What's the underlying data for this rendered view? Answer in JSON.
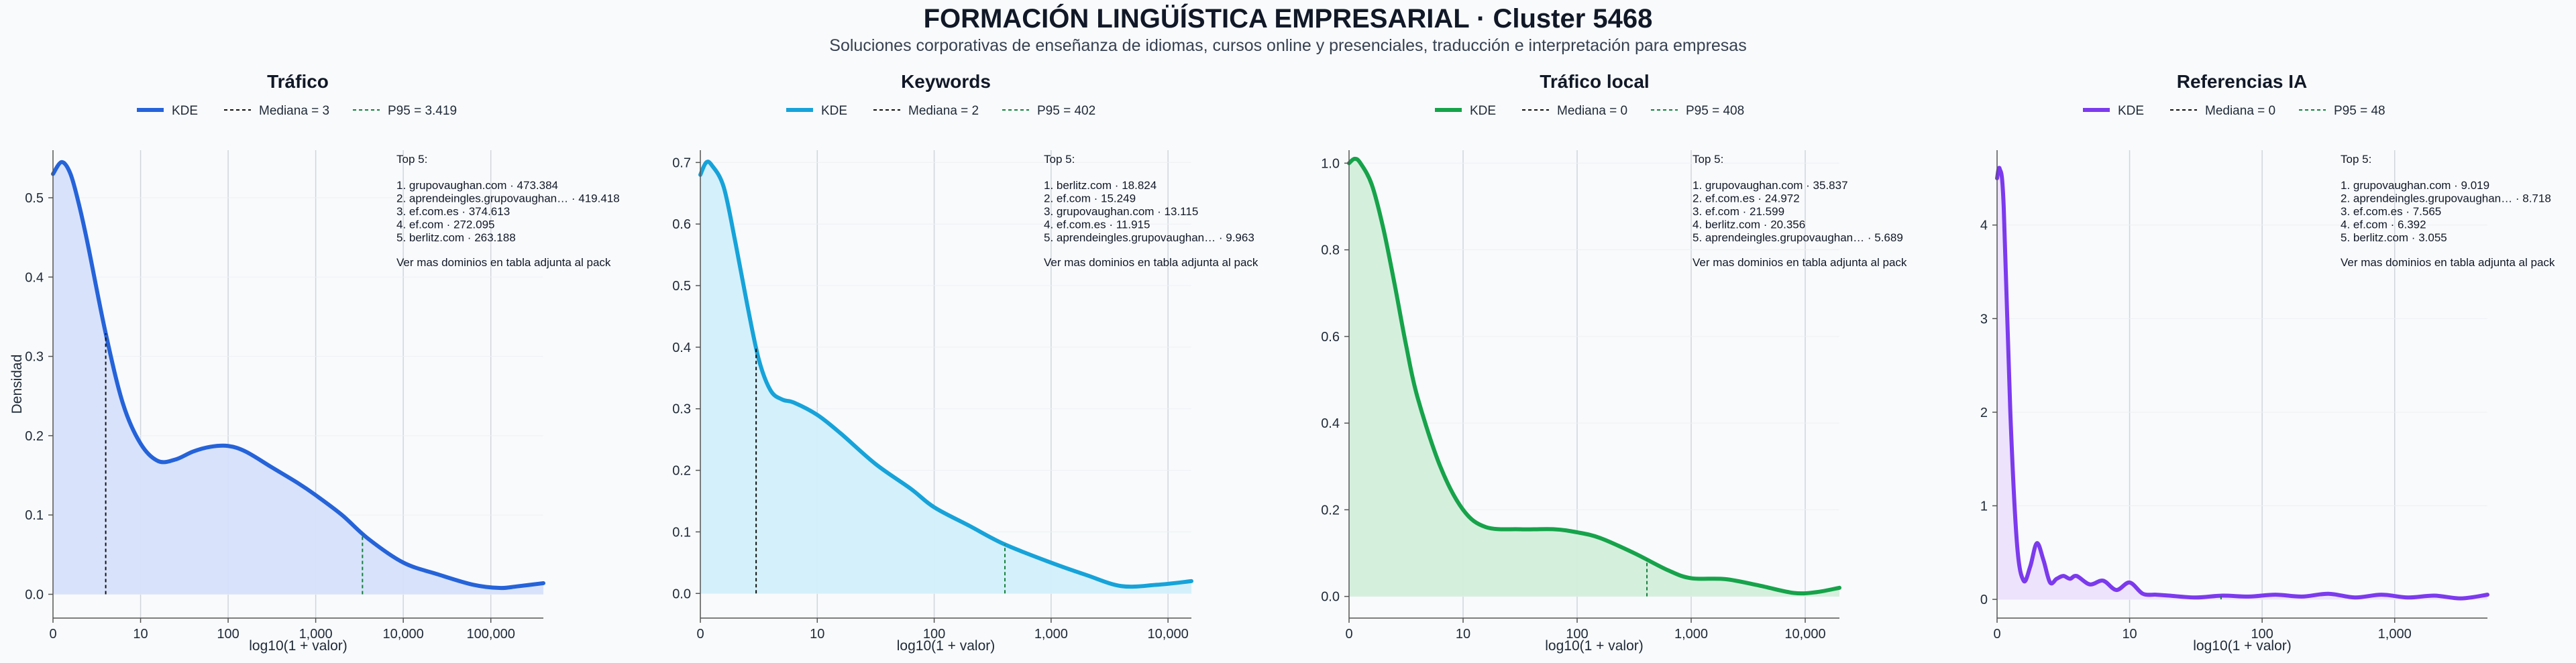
{
  "title": "FORMACIÓN LINGÜÍSTICA EMPRESARIAL · Cluster 5468",
  "subtitle": "Soluciones corporativas de enseñanza de idiomas, cursos online y presenciales, traducción e interpretación para empresas",
  "colors": {
    "median_line": "#111111",
    "p95_line": "#15803d",
    "grid": "#d1d5db"
  },
  "chart_data": [
    {
      "type": "area",
      "title": "Tráfico",
      "xlabel": "log10(1 + valor)",
      "ylabel": "Densidad",
      "color": "#2563d9",
      "fill": "#d6e0fb",
      "xlim": [
        0,
        5.6
      ],
      "ylim": [
        -0.03,
        0.56
      ],
      "xticks": [
        0,
        1,
        2,
        3,
        4,
        5
      ],
      "xtick_labels": [
        "0",
        "10",
        "100",
        "1,000",
        "10,000",
        "100,000"
      ],
      "yticks": [
        0,
        0.1,
        0.2,
        0.3,
        0.4,
        0.5
      ],
      "ytick_labels": [
        "0.0",
        "0.1",
        "0.2",
        "0.3",
        "0.4",
        "0.5"
      ],
      "legend": {
        "kde": "KDE",
        "median": "Mediana = 3",
        "p95": "P95 = 3.419"
      },
      "median_x": 0.602,
      "p95_x": 3.534,
      "x": [
        0,
        0.1,
        0.2,
        0.3,
        0.4,
        0.6,
        0.8,
        1.0,
        1.2,
        1.4,
        1.6,
        1.8,
        2.0,
        2.2,
        2.5,
        2.8,
        3.0,
        3.3,
        3.6,
        4.0,
        4.4,
        4.8,
        5.1,
        5.3,
        5.6
      ],
      "y": [
        0.53,
        0.545,
        0.53,
        0.49,
        0.44,
        0.33,
        0.24,
        0.19,
        0.168,
        0.17,
        0.18,
        0.186,
        0.187,
        0.18,
        0.16,
        0.14,
        0.125,
        0.1,
        0.07,
        0.04,
        0.025,
        0.012,
        0.008,
        0.01,
        0.014
      ],
      "top5": {
        "heading": "Top 5:",
        "items": [
          "1. grupovaughan.com · 473.384",
          "2. aprendeingles.grupovaughan… · 419.418",
          "3. ef.com.es · 374.613",
          "4. ef.com · 272.095",
          "5. berlitz.com · 263.188"
        ],
        "note": "Ver mas dominios en tabla adjunta al pack"
      }
    },
    {
      "type": "area",
      "title": "Keywords",
      "xlabel": "log10(1 + valor)",
      "ylabel": "",
      "color": "#16a3d9",
      "fill": "#d2effb",
      "xlim": [
        0,
        4.2
      ],
      "ylim": [
        -0.04,
        0.72
      ],
      "xticks": [
        0,
        1,
        2,
        3,
        4
      ],
      "xtick_labels": [
        "0",
        "10",
        "100",
        "1,000",
        "10,000"
      ],
      "yticks": [
        0,
        0.1,
        0.2,
        0.3,
        0.4,
        0.5,
        0.6,
        0.7
      ],
      "ytick_labels": [
        "0.0",
        "0.1",
        "0.2",
        "0.3",
        "0.4",
        "0.5",
        "0.6",
        "0.7"
      ],
      "legend": {
        "kde": "KDE",
        "median": "Mediana = 2",
        "p95": "P95 = 402"
      },
      "median_x": 0.477,
      "p95_x": 2.605,
      "x": [
        0,
        0.05,
        0.1,
        0.2,
        0.3,
        0.4,
        0.5,
        0.6,
        0.7,
        0.8,
        1.0,
        1.2,
        1.5,
        1.8,
        2.0,
        2.3,
        2.6,
        3.0,
        3.3,
        3.6,
        3.9,
        4.2
      ],
      "y": [
        0.68,
        0.7,
        0.695,
        0.66,
        0.57,
        0.47,
        0.38,
        0.33,
        0.315,
        0.31,
        0.29,
        0.26,
        0.21,
        0.17,
        0.14,
        0.11,
        0.08,
        0.05,
        0.03,
        0.012,
        0.014,
        0.02
      ],
      "top5": {
        "heading": "Top 5:",
        "items": [
          "1. berlitz.com · 18.824",
          "2. ef.com · 15.249",
          "3. grupovaughan.com · 13.115",
          "4. ef.com.es · 11.915",
          "5. aprendeingles.grupovaughan… · 9.963"
        ],
        "note": "Ver mas dominios en tabla adjunta al pack"
      }
    },
    {
      "type": "area",
      "title": "Tráfico local",
      "xlabel": "log10(1 + valor)",
      "ylabel": "",
      "color": "#16a34a",
      "fill": "#d3eedb",
      "xlim": [
        0,
        4.3
      ],
      "ylim": [
        -0.05,
        1.03
      ],
      "xticks": [
        0,
        1,
        2,
        3,
        4
      ],
      "xtick_labels": [
        "0",
        "10",
        "100",
        "1,000",
        "10,000"
      ],
      "yticks": [
        0,
        0.2,
        0.4,
        0.6,
        0.8,
        1.0
      ],
      "ytick_labels": [
        "0.0",
        "0.2",
        "0.4",
        "0.6",
        "0.8",
        "1.0"
      ],
      "legend": {
        "kde": "KDE",
        "median": "Mediana = 0",
        "p95": "P95 = 408"
      },
      "median_x": 0,
      "p95_x": 2.612,
      "x": [
        0,
        0.05,
        0.1,
        0.2,
        0.3,
        0.4,
        0.5,
        0.6,
        0.8,
        1.0,
        1.2,
        1.5,
        1.8,
        2.0,
        2.2,
        2.5,
        2.8,
        3.0,
        3.3,
        3.6,
        3.9,
        4.1,
        4.3
      ],
      "y": [
        1.0,
        1.01,
        1.0,
        0.95,
        0.85,
        0.72,
        0.58,
        0.46,
        0.3,
        0.2,
        0.16,
        0.155,
        0.155,
        0.148,
        0.135,
        0.1,
        0.06,
        0.042,
        0.04,
        0.025,
        0.008,
        0.01,
        0.02
      ],
      "top5": {
        "heading": "Top 5:",
        "items": [
          "1. grupovaughan.com · 35.837",
          "2. ef.com.es · 24.972",
          "3. ef.com · 21.599",
          "4. berlitz.com · 20.356",
          "5. aprendeingles.grupovaughan… · 5.689"
        ],
        "note": "Ver mas dominios en tabla adjunta al pack"
      }
    },
    {
      "type": "area",
      "title": "Referencias IA",
      "xlabel": "log10(1 + valor)",
      "ylabel": "",
      "color": "#7c3aed",
      "fill": "#ece2fc",
      "xlim": [
        0,
        3.7
      ],
      "ylim": [
        -0.2,
        4.8
      ],
      "xticks": [
        0,
        1,
        2,
        3
      ],
      "xtick_labels": [
        "0",
        "10",
        "100",
        "1,000"
      ],
      "yticks": [
        0,
        1,
        2,
        3,
        4
      ],
      "ytick_labels": [
        "0",
        "1",
        "2",
        "3",
        "4"
      ],
      "legend": {
        "kde": "KDE",
        "median": "Mediana = 0",
        "p95": "P95 = 48"
      },
      "median_x": 0,
      "p95_x": 1.69,
      "x": [
        0,
        0.02,
        0.05,
        0.1,
        0.15,
        0.2,
        0.25,
        0.3,
        0.35,
        0.4,
        0.45,
        0.5,
        0.55,
        0.6,
        0.7,
        0.8,
        0.9,
        1.0,
        1.1,
        1.2,
        1.3,
        1.5,
        1.7,
        1.9,
        2.1,
        2.3,
        2.5,
        2.7,
        2.9,
        3.1,
        3.3,
        3.5,
        3.7
      ],
      "y": [
        4.5,
        4.6,
        4.2,
        2.0,
        0.6,
        0.2,
        0.35,
        0.6,
        0.42,
        0.18,
        0.22,
        0.25,
        0.22,
        0.25,
        0.16,
        0.2,
        0.1,
        0.18,
        0.06,
        0.05,
        0.04,
        0.02,
        0.04,
        0.03,
        0.05,
        0.03,
        0.06,
        0.02,
        0.05,
        0.02,
        0.04,
        0.01,
        0.05
      ],
      "top5": {
        "heading": "Top 5:",
        "items": [
          "1. grupovaughan.com · 9.019",
          "2. aprendeingles.grupovaughan… · 8.718",
          "3. ef.com.es · 7.565",
          "4. ef.com · 6.392",
          "5. berlitz.com · 3.055"
        ],
        "note": "Ver mas dominios en tabla adjunta al pack"
      }
    }
  ]
}
